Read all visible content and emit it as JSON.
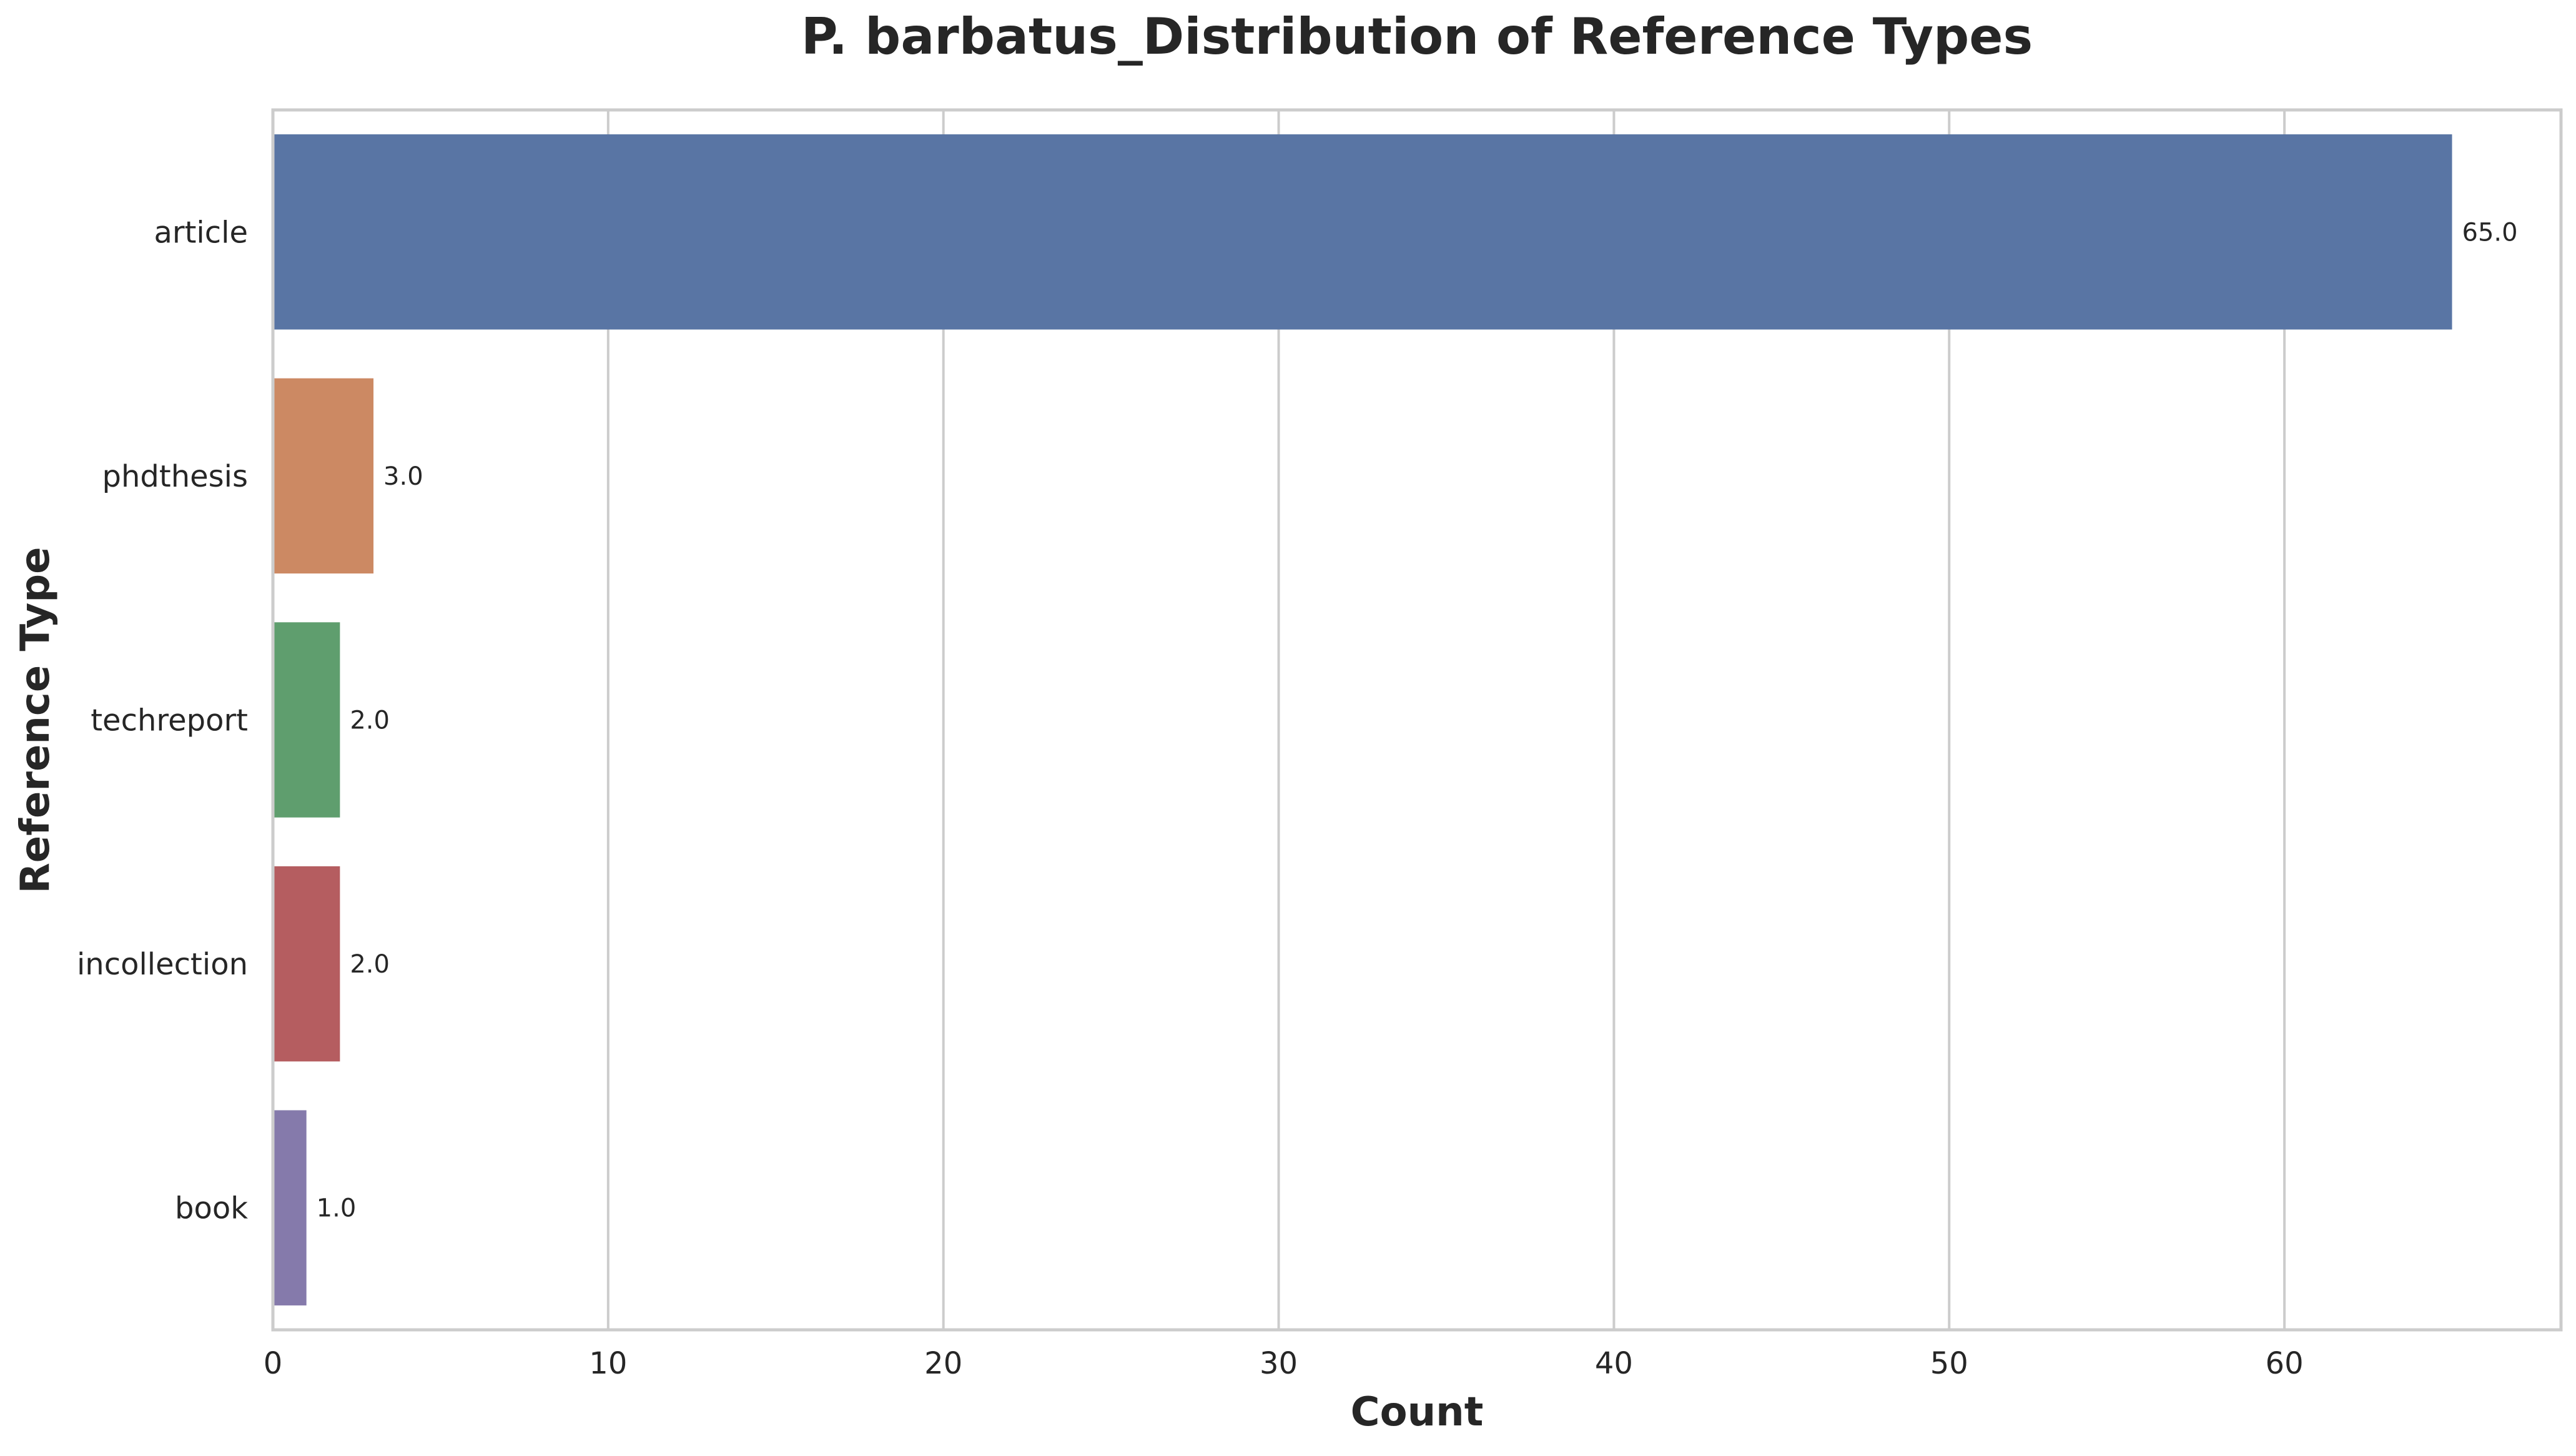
{
  "chart_data": {
    "type": "bar",
    "orientation": "horizontal",
    "title": "P. barbatus_Distribution of Reference Types",
    "xlabel": "Count",
    "ylabel": "Reference Type",
    "categories": [
      "article",
      "phdthesis",
      "techreport",
      "incollection",
      "book"
    ],
    "values": [
      65,
      3,
      2,
      2,
      1
    ],
    "value_labels": [
      "65.0",
      "3.0",
      "2.0",
      "2.0",
      "1.0"
    ],
    "colors": [
      "#5975a4",
      "#cc8963",
      "#5f9e6e",
      "#b55d60",
      "#857aab"
    ],
    "xlim": [
      0,
      68.25
    ],
    "xticks": [
      0,
      10,
      20,
      30,
      40,
      50,
      60
    ],
    "xtick_labels": [
      "0",
      "10",
      "20",
      "30",
      "40",
      "50",
      "60"
    ],
    "grid": "vertical"
  }
}
